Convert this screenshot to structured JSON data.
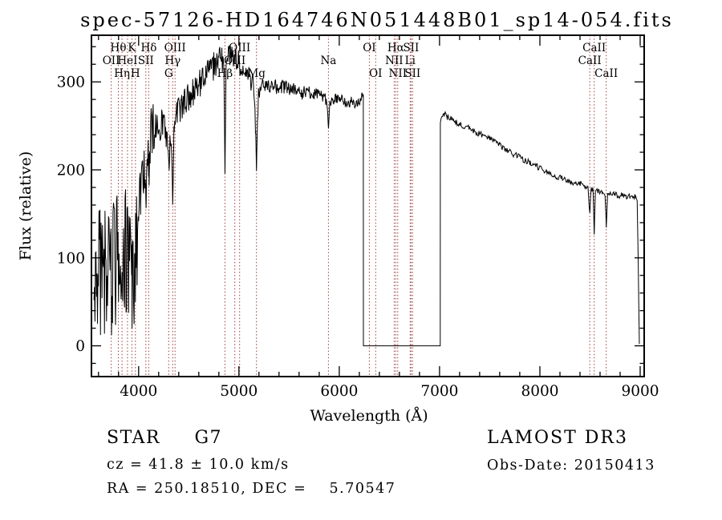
{
  "title": "spec-57126-HD164746N051448B01_sp14-054.fits",
  "footer": {
    "class_line": "STAR     G7",
    "cz_line": "cz = 41.8 ± 10.0 km/s",
    "radec_line": "RA = 250.18510, DEC =    5.70547",
    "survey": "LAMOST DR3",
    "obsdate_line": "Obs-Date: 20150413"
  },
  "chart_data": {
    "type": "line",
    "title": "spec-57126-HD164746N051448B01_sp14-054.fits",
    "xlabel": "Wavelength (Å)",
    "ylabel": "Flux (relative)",
    "xlim": [
      3530,
      9040
    ],
    "ylim": [
      -35,
      353
    ],
    "x_ticks": [
      4000,
      5000,
      6000,
      7000,
      8000,
      9000
    ],
    "y_ticks": [
      0,
      100,
      200,
      300
    ],
    "x_minor_step": 200,
    "y_minor_step": 20,
    "grid": false,
    "spectrum_color": "#000000",
    "line_marker_color": "#9e3b3b",
    "flux_gap": [
      6240,
      7008
    ],
    "spectral_lines": [
      {
        "label": "OII",
        "wavelength": 3727,
        "row": 2
      },
      {
        "label": "Hθ",
        "wavelength": 3798,
        "row": 1
      },
      {
        "label": "Hη",
        "wavelength": 3835,
        "row": 3
      },
      {
        "label": "HeI",
        "wavelength": 3889,
        "row": 2
      },
      {
        "label": "K",
        "wavelength": 3933,
        "row": 1
      },
      {
        "label": "H",
        "wavelength": 3968,
        "row": 3
      },
      {
        "label": "SII",
        "wavelength": 4072,
        "row": 2
      },
      {
        "label": "Hδ",
        "wavelength": 4101,
        "row": 1
      },
      {
        "label": "G",
        "wavelength": 4300,
        "row": 3
      },
      {
        "label": "Hγ",
        "wavelength": 4340,
        "row": 2
      },
      {
        "label": "OIII",
        "wavelength": 4363,
        "row": 1
      },
      {
        "label": "Hβ",
        "wavelength": 4861,
        "row": 3
      },
      {
        "label": "OIII",
        "wavelength": 4959,
        "row": 2
      },
      {
        "label": "OIII",
        "wavelength": 5007,
        "row": 1
      },
      {
        "label": "Mg",
        "wavelength": 5175,
        "row": 3
      },
      {
        "label": "Na",
        "wavelength": 5892,
        "row": 2
      },
      {
        "label": "OI",
        "wavelength": 6300,
        "row": 1
      },
      {
        "label": "OI",
        "wavelength": 6363,
        "row": 3
      },
      {
        "label": "NII",
        "wavelength": 6548,
        "row": 2
      },
      {
        "label": "Hα",
        "wavelength": 6563,
        "row": 1
      },
      {
        "label": "NII",
        "wavelength": 6583,
        "row": 3
      },
      {
        "label": "Li",
        "wavelength": 6707,
        "row": 2
      },
      {
        "label": "SII",
        "wavelength": 6716,
        "row": 1
      },
      {
        "label": "SII",
        "wavelength": 6731,
        "row": 3
      },
      {
        "label": "CaII",
        "wavelength": 8498,
        "row": 2
      },
      {
        "label": "CaII",
        "wavelength": 8542,
        "row": 1
      },
      {
        "label": "CaII",
        "wavelength": 8662,
        "row": 3
      }
    ],
    "spectrum": {
      "seed": 20150413,
      "noise_ranges": [
        [
          3555,
          3995,
          78
        ],
        [
          3995,
          4160,
          30
        ],
        [
          4160,
          4420,
          18
        ],
        [
          4420,
          4845,
          17
        ],
        [
          4845,
          4880,
          6
        ],
        [
          4880,
          5150,
          13
        ],
        [
          5150,
          5200,
          6
        ],
        [
          5200,
          5868,
          8
        ],
        [
          5868,
          5912,
          4
        ],
        [
          5912,
          6240,
          7
        ],
        [
          6240,
          7008,
          0
        ],
        [
          7008,
          8470,
          3.5
        ],
        [
          8470,
          8700,
          2.5
        ],
        [
          8700,
          8965,
          3
        ],
        [
          8965,
          9000,
          0
        ]
      ],
      "segments": [
        {
          "step": 5,
          "anchors": [
            [
              3555,
              40
            ],
            [
              3570,
              70
            ],
            [
              3600,
              75
            ],
            [
              3640,
              80
            ],
            [
              3680,
              85
            ],
            [
              3720,
              88
            ],
            [
              3760,
              92
            ],
            [
              3800,
              96
            ],
            [
              3840,
              102
            ],
            [
              3880,
              108
            ],
            [
              3920,
              100
            ],
            [
              3933,
              70
            ],
            [
              3950,
              100
            ],
            [
              3968,
              80
            ],
            [
              3990,
              120
            ],
            [
              4000,
              150
            ],
            [
              4030,
              185
            ],
            [
              4060,
              205
            ],
            [
              4072,
              175
            ],
            [
              4090,
              220
            ],
            [
              4101,
              190
            ],
            [
              4120,
              240
            ],
            [
              4160,
              252
            ],
            [
              4200,
              250
            ],
            [
              4250,
              252
            ],
            [
              4290,
              235
            ],
            [
              4300,
              195
            ],
            [
              4312,
              242
            ],
            [
              4330,
              222
            ],
            [
              4340,
              175
            ],
            [
              4352,
              245
            ],
            [
              4380,
              262
            ],
            [
              4420,
              272
            ],
            [
              4480,
              280
            ],
            [
              4540,
              288
            ],
            [
              4600,
              296
            ],
            [
              4660,
              305
            ],
            [
              4720,
              314
            ],
            [
              4780,
              324
            ],
            [
              4820,
              330
            ],
            [
              4850,
              318
            ],
            [
              4861,
              198
            ],
            [
              4872,
              315
            ],
            [
              4900,
              330
            ],
            [
              4940,
              330
            ],
            [
              4980,
              326
            ],
            [
              5020,
              318
            ],
            [
              5060,
              312
            ],
            [
              5100,
              308
            ],
            [
              5140,
              298
            ],
            [
              5155,
              283
            ],
            [
              5167,
              240
            ],
            [
              5175,
              200
            ],
            [
              5185,
              250
            ],
            [
              5195,
              287
            ],
            [
              5230,
              296
            ],
            [
              5280,
              293
            ],
            [
              5340,
              296
            ],
            [
              5400,
              293
            ],
            [
              5460,
              295
            ],
            [
              5520,
              290
            ],
            [
              5580,
              291
            ],
            [
              5640,
              287
            ],
            [
              5700,
              288
            ],
            [
              5760,
              284
            ],
            [
              5820,
              285
            ],
            [
              5868,
              278
            ],
            [
              5880,
              272
            ],
            [
              5893,
              250
            ],
            [
              5906,
              276
            ],
            [
              5940,
              280
            ],
            [
              6000,
              281
            ],
            [
              6060,
              277
            ],
            [
              6120,
              278
            ],
            [
              6180,
              276
            ],
            [
              6220,
              281
            ],
            [
              6240,
              286
            ]
          ]
        },
        {
          "step": 400,
          "anchors": [
            [
              6241,
              0
            ],
            [
              7007,
              0
            ]
          ]
        },
        {
          "step": 7,
          "anchors": [
            [
              7008,
              252
            ],
            [
              7022,
              262
            ],
            [
              7045,
              264
            ],
            [
              7080,
              260
            ],
            [
              7140,
              256
            ],
            [
              7200,
              252
            ],
            [
              7300,
              247
            ],
            [
              7400,
              241
            ],
            [
              7500,
              235
            ],
            [
              7600,
              229
            ],
            [
              7650,
              223
            ],
            [
              7700,
              220
            ],
            [
              7800,
              214
            ],
            [
              7900,
              208
            ],
            [
              8000,
              202
            ],
            [
              8100,
              196
            ],
            [
              8200,
              191
            ],
            [
              8300,
              187
            ],
            [
              8400,
              184
            ],
            [
              8460,
              182
            ],
            [
              8480,
              180
            ],
            [
              8498,
              150
            ],
            [
              8510,
              178
            ],
            [
              8530,
              177
            ],
            [
              8542,
              128
            ],
            [
              8554,
              176
            ],
            [
              8580,
              176
            ],
            [
              8620,
              174
            ],
            [
              8650,
              172
            ],
            [
              8662,
              136
            ],
            [
              8675,
              173
            ],
            [
              8700,
              172
            ],
            [
              8740,
              174
            ],
            [
              8780,
              170
            ],
            [
              8820,
              172
            ],
            [
              8860,
              169
            ],
            [
              8900,
              170
            ],
            [
              8930,
              168
            ],
            [
              8955,
              170
            ],
            [
              8970,
              165
            ],
            [
              8980,
              100
            ],
            [
              8988,
              30
            ],
            [
              8992,
              2
            ]
          ]
        }
      ]
    }
  }
}
